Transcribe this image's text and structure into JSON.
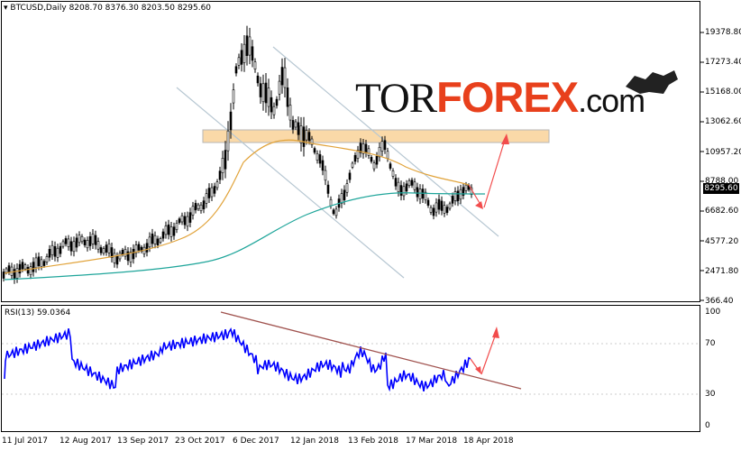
{
  "chart_header": {
    "symbol": "BTCUSD,Daily",
    "ohlc": "8208.70 8376.30 8203.50 8295.60"
  },
  "price_axis": [
    "19378.80",
    "17273.40",
    "15168.00",
    "13062.60",
    "10957.20",
    "8788.00",
    "6682.60",
    "4577.20",
    "2471.80",
    "366.40"
  ],
  "current_price": "8295.60",
  "rsi": {
    "label": "RSI(13) 59.0364",
    "levels": [
      "100",
      "70",
      "30",
      "0"
    ]
  },
  "date_axis": [
    "11 Jul 2017",
    "12 Aug 2017",
    "13 Sep 2017",
    "23 Oct 2017",
    "6 Dec 2017",
    "12 Jan 2018",
    "13 Feb 2018",
    "17 Mar 2018",
    "18 Apr 2018"
  ],
  "watermark": {
    "part1": "TOR",
    "part2": "FOREX",
    ".com": ".com"
  },
  "colors": {
    "ma_fast": "#e1a33a",
    "ma_slow": "#1ea59a",
    "rsi_line": "#0000ff",
    "channel": "#b7c7d2",
    "trend_rsi": "#a0524e",
    "arrow": "#f24c4c",
    "zone": "#fad9a8"
  }
}
